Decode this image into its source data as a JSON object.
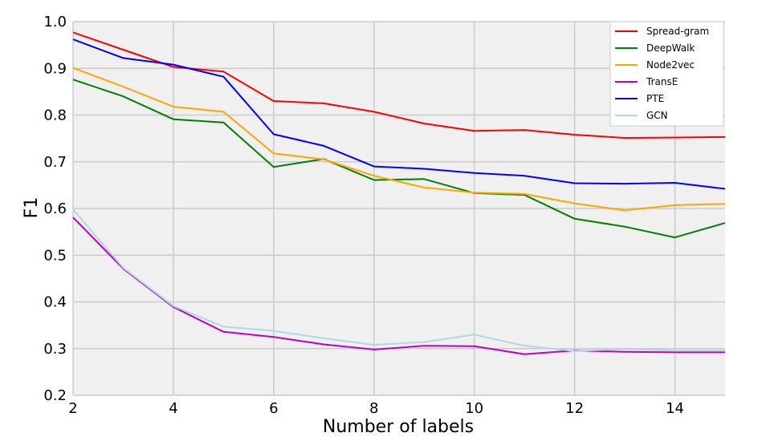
{
  "chart_data": {
    "type": "line",
    "xlabel": "Number of labels",
    "ylabel": "F1",
    "xlim": [
      2,
      15
    ],
    "ylim": [
      0.2,
      1.0
    ],
    "x_ticks": [
      2,
      4,
      6,
      8,
      10,
      12,
      14
    ],
    "y_ticks": [
      0.2,
      0.3,
      0.4,
      0.5,
      0.6,
      0.7,
      0.8,
      0.9,
      1.0
    ],
    "x_tick_labels": [
      "2",
      "4",
      "6",
      "8",
      "10",
      "12",
      "14"
    ],
    "y_tick_labels": [
      "0.2",
      "0.3",
      "0.4",
      "0.5",
      "0.6",
      "0.7",
      "0.8",
      "0.9",
      "1.0"
    ],
    "grid": true,
    "legend_position": "top-right",
    "background_color": "#f0f0f0",
    "grid_color": "#cbcbcb",
    "x": [
      2,
      3,
      4,
      5,
      6,
      7,
      8,
      9,
      10,
      11,
      12,
      13,
      14,
      15
    ],
    "series": [
      {
        "name": "Spread-gram",
        "color": "#ff0000",
        "values": [
          0.977,
          0.94,
          0.903,
          0.893,
          0.83,
          0.825,
          0.807,
          0.782,
          0.766,
          0.768,
          0.758,
          0.751,
          0.752,
          0.753
        ]
      },
      {
        "name": "DeepWalk",
        "color": "#008000",
        "values": [
          0.876,
          0.84,
          0.791,
          0.784,
          0.689,
          0.706,
          0.661,
          0.663,
          0.633,
          0.629,
          0.578,
          0.561,
          0.538,
          0.569
        ]
      },
      {
        "name": "Node2vec",
        "color": "#ffa500",
        "values": [
          0.901,
          0.861,
          0.818,
          0.807,
          0.718,
          0.705,
          0.67,
          0.645,
          0.634,
          0.631,
          0.611,
          0.596,
          0.607,
          0.61
        ]
      },
      {
        "name": "TransE",
        "color": "#bf00bf",
        "values": [
          0.581,
          0.471,
          0.389,
          0.336,
          0.325,
          0.309,
          0.298,
          0.306,
          0.305,
          0.288,
          0.296,
          0.293,
          0.292,
          0.292
        ]
      },
      {
        "name": "PTE",
        "color": "#0000ff",
        "values": [
          0.962,
          0.922,
          0.908,
          0.882,
          0.759,
          0.734,
          0.69,
          0.685,
          0.676,
          0.67,
          0.654,
          0.653,
          0.655,
          0.642
        ]
      },
      {
        "name": "GCN",
        "color": "#add8e6",
        "values": [
          0.598,
          0.473,
          0.391,
          0.347,
          0.338,
          0.322,
          0.308,
          0.314,
          0.33,
          0.306,
          0.295,
          0.299,
          0.296,
          0.296
        ]
      }
    ]
  }
}
